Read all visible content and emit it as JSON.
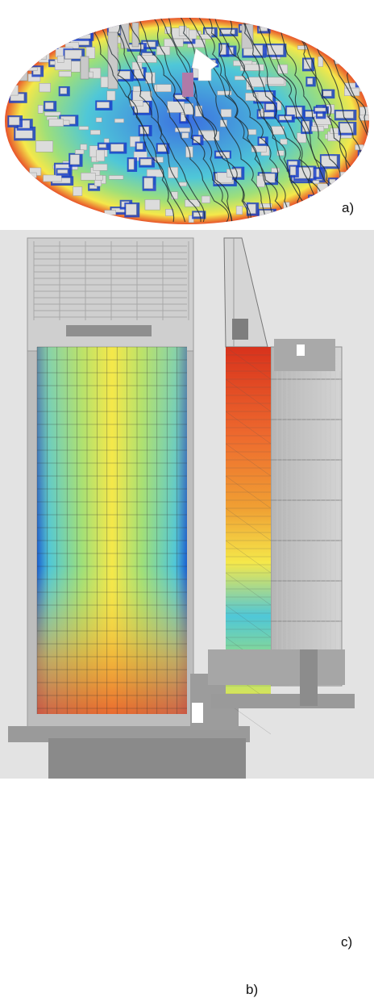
{
  "panels": {
    "a": {
      "label": "a)"
    },
    "b": {
      "label": "b)"
    },
    "c": {
      "label": "c)"
    }
  },
  "colors": {
    "background": "#ffffff",
    "panel_bg": "#e3e3e3",
    "building": "#d6d6d6",
    "contour_low": "#1a3fc8",
    "contour_mid": "#4fc7d8",
    "contour_green": "#9edf7a",
    "contour_high": "#f5e84a",
    "contour_max": "#e8542a",
    "streamline": "#1e2b2e",
    "highlight_building": "#b07aa8"
  },
  "icons": [
    "wind-direction-arrow-icon"
  ]
}
